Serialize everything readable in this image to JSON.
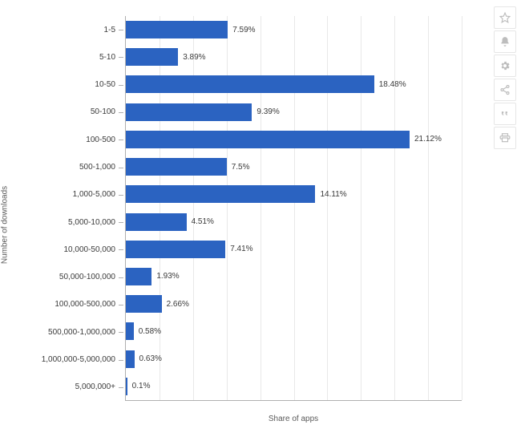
{
  "chart": {
    "type": "bar-horizontal",
    "y_axis_label": "Number of downloads",
    "x_axis_label": "Share of apps",
    "categories": [
      "1-5",
      "5-10",
      "10-50",
      "50-100",
      "100-500",
      "500-1,000",
      "1,000-5,000",
      "5,000-10,000",
      "10,000-50,000",
      "50,000-100,000",
      "100,000-500,000",
      "500,000-1,000,000",
      "1,000,000-5,000,000",
      "5,000,000+"
    ],
    "values": [
      7.59,
      3.89,
      18.48,
      9.39,
      21.12,
      7.5,
      14.11,
      4.51,
      7.41,
      1.93,
      2.66,
      0.58,
      0.63,
      0.1
    ],
    "value_labels": [
      "7.59%",
      "3.89%",
      "18.48%",
      "9.39%",
      "21.12%",
      "7.5%",
      "14.11%",
      "4.51%",
      "7.41%",
      "1.93%",
      "2.66%",
      "0.58%",
      "0.63%",
      "0.1%"
    ],
    "bar_color": "#2b63c1",
    "xmax": 25,
    "background_color": "#ffffff",
    "grid_color": "#e8e8e8",
    "axis_color": "#b0b0b0",
    "label_color": "#3a3a3a",
    "axis_title_color": "#5a5a5a",
    "label_fontsize": 10,
    "axis_title_fontsize": 10,
    "grid_step": 2.5
  },
  "toolbar": {
    "icons": [
      "star-icon",
      "bell-icon",
      "gear-icon",
      "share-icon",
      "quote-icon",
      "print-icon"
    ],
    "icon_color": "#bdbdbd",
    "btn_bg": "#ffffff",
    "btn_border": "#e6e6e6"
  }
}
